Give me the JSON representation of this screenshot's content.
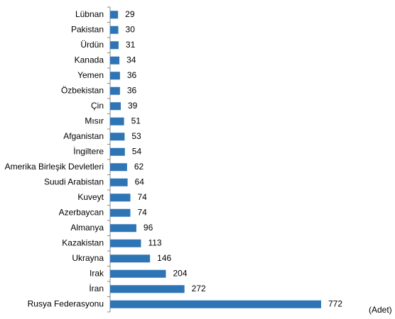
{
  "chart_data": {
    "type": "bar",
    "orientation": "horizontal",
    "categories": [
      "Lübnan",
      "Pakistan",
      "Ürdün",
      "Kanada",
      "Yemen",
      "Özbekistan",
      "Çin",
      "Mısır",
      "Afganistan",
      "İngiltere",
      "Amerika Birleşik Devletleri",
      "Suudi Arabistan",
      "Kuveyt",
      "Azerbaycan",
      "Almanya",
      "Kazakistan",
      "Ukrayna",
      "Irak",
      "İran",
      "Rusya Federasyonu"
    ],
    "values": [
      29,
      30,
      31,
      34,
      36,
      36,
      39,
      51,
      53,
      54,
      62,
      64,
      74,
      74,
      96,
      113,
      146,
      204,
      272,
      772
    ],
    "color": "#2e75b6",
    "x_label": "(Adet)"
  }
}
